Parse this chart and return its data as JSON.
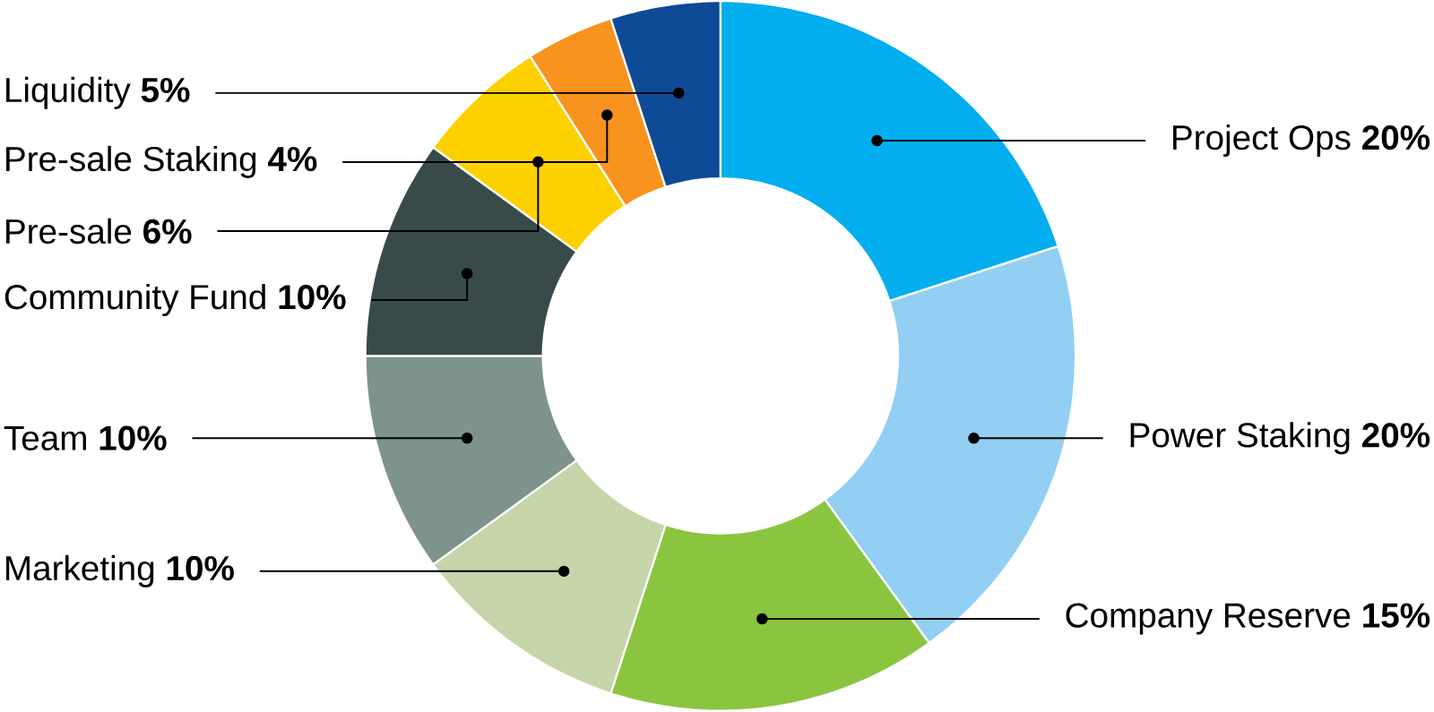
{
  "chart_data": {
    "type": "donut",
    "categories": [
      "Project Ops",
      "Power Staking",
      "Company Reserve",
      "Marketing",
      "Team",
      "Community Fund",
      "Pre-sale",
      "Pre-sale Staking",
      "Liquidity"
    ],
    "values": [
      20,
      20,
      15,
      10,
      10,
      10,
      6,
      4,
      5
    ],
    "value_labels": [
      "20%",
      "20%",
      "15%",
      "10%",
      "10%",
      "10%",
      "6%",
      "4%",
      "5%"
    ],
    "colors": [
      "#03aeef",
      "#92cff2",
      "#8bc53f",
      "#c5d5a9",
      "#7d938b",
      "#384b4a",
      "#fdd000",
      "#f7931e",
      "#0f4a96"
    ]
  }
}
